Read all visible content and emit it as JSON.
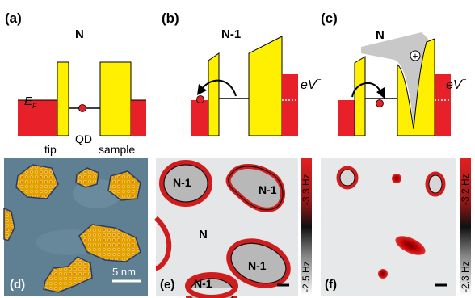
{
  "panels": {
    "a": {
      "label": "(a)",
      "state": "N",
      "fermi": "E",
      "fermi_sub": "F",
      "tip": "tip",
      "qd": "QD",
      "sample": "sample"
    },
    "b": {
      "label": "(b)",
      "state": "N-1",
      "bias": "eV",
      "bias_sup": "−"
    },
    "c": {
      "label": "(c)",
      "state": "N",
      "bias": "eV",
      "bias_sup": "−",
      "charge": "+"
    },
    "d": {
      "label": "(d)",
      "scalebar": "5 nm"
    },
    "e": {
      "label": "(e)",
      "region_labels": [
        "N-1",
        "N-1",
        "N",
        "N-1",
        "N-1"
      ],
      "colorbar_top": "-3.3 Hz",
      "colorbar_bottom": "-2.5 Hz"
    },
    "f": {
      "label": "(f)",
      "colorbar_top": "-3.2 Hz",
      "colorbar_bottom": "-2.3 Hz"
    }
  },
  "colors": {
    "yellow": "#ffef00",
    "red": "#e8202a",
    "gray_cone": "#c8c8c8",
    "stm_bg": "#5f7f93",
    "afm_bg": "#e6e8ea",
    "ring": "#d01c1c"
  }
}
